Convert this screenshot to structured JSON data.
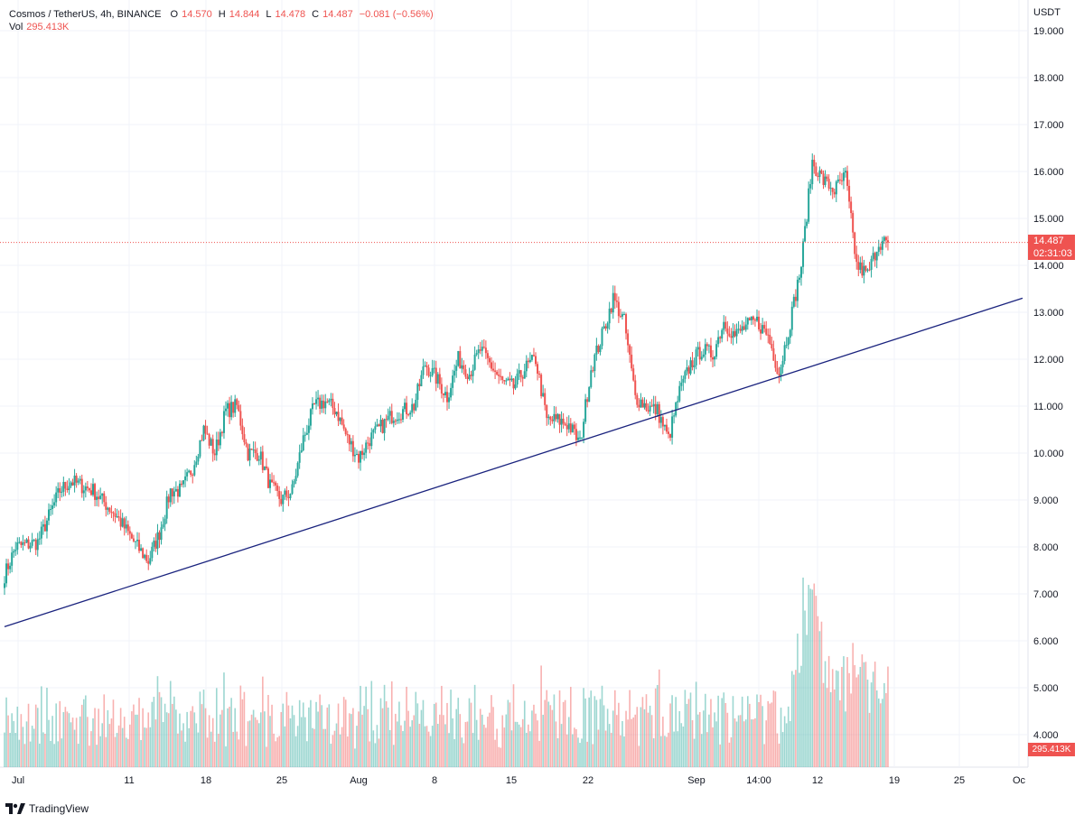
{
  "legend": {
    "symbol": "Cosmos / TetherUS, 4h, BINANCE",
    "open_label": "O",
    "open": "14.570",
    "high_label": "H",
    "high": "14.844",
    "low_label": "L",
    "low": "14.478",
    "close_label": "C",
    "close": "14.487",
    "change": "−0.081 (−0.56%)",
    "vol_label": "Vol",
    "vol": "295.413K"
  },
  "axis": {
    "currency": "USDT",
    "price_ticks": [
      "19.000",
      "18.000",
      "17.000",
      "16.000",
      "15.000",
      "14.000",
      "13.000",
      "12.000",
      "11.000",
      "10.000",
      "9.000",
      "8.000",
      "7.000",
      "6.000",
      "5.000",
      "4.000"
    ],
    "time_ticks": [
      "Jul",
      "11",
      "18",
      "25",
      "Aug",
      "8",
      "15",
      "22",
      "Sep",
      "14:00",
      "12",
      "19",
      "25",
      "Oc"
    ]
  },
  "last_price": {
    "price": "14.487",
    "countdown": "02:31:03"
  },
  "volume_tag": "295.413K",
  "brand": "TradingView",
  "colors": {
    "up": "#26a69a",
    "down": "#ef5350",
    "trendline": "#1a237e",
    "grid": "#f0f3fa"
  },
  "chart_data": {
    "type": "candlestick",
    "timeframe": "4h",
    "ylim": [
      3.4,
      19.3
    ],
    "trendline": {
      "from": {
        "x": "2022-07-01",
        "y": 6.3
      },
      "to": {
        "x": "2022-10-01",
        "y": 13.3
      }
    },
    "last_close": 14.487,
    "anchors": [
      [
        "2022-07-01",
        7.4
      ],
      [
        "2022-07-02",
        8.0
      ],
      [
        "2022-07-04",
        8.1
      ],
      [
        "2022-07-06",
        9.2
      ],
      [
        "2022-07-07",
        9.4
      ],
      [
        "2022-07-09",
        9.2
      ],
      [
        "2022-07-11",
        8.7
      ],
      [
        "2022-07-13",
        8.0
      ],
      [
        "2022-07-14",
        7.7
      ],
      [
        "2022-07-15",
        8.3
      ],
      [
        "2022-07-16",
        9.2
      ],
      [
        "2022-07-17",
        9.2
      ],
      [
        "2022-07-18",
        9.7
      ],
      [
        "2022-07-19",
        10.5
      ],
      [
        "2022-07-20",
        10.0
      ],
      [
        "2022-07-21",
        10.9
      ],
      [
        "2022-07-22",
        11.0
      ],
      [
        "2022-07-23",
        10.0
      ],
      [
        "2022-07-24",
        10.0
      ],
      [
        "2022-07-25",
        9.3
      ],
      [
        "2022-07-26",
        9.0
      ],
      [
        "2022-07-27",
        9.2
      ],
      [
        "2022-07-28",
        10.3
      ],
      [
        "2022-07-29",
        11.0
      ],
      [
        "2022-07-30",
        11.1
      ],
      [
        "2022-07-31",
        10.9
      ],
      [
        "2022-08-01",
        10.3
      ],
      [
        "2022-08-02",
        9.9
      ],
      [
        "2022-08-03",
        10.3
      ],
      [
        "2022-08-05",
        10.8
      ],
      [
        "2022-08-06",
        10.9
      ],
      [
        "2022-08-07",
        11.0
      ],
      [
        "2022-08-08",
        11.9
      ],
      [
        "2022-08-09",
        11.6
      ],
      [
        "2022-08-10",
        11.2
      ],
      [
        "2022-08-11",
        12.0
      ],
      [
        "2022-08-12",
        11.7
      ],
      [
        "2022-08-13",
        12.2
      ],
      [
        "2022-08-15",
        11.5
      ],
      [
        "2022-08-16",
        11.4
      ],
      [
        "2022-08-17",
        11.8
      ],
      [
        "2022-08-18",
        12.0
      ],
      [
        "2022-08-19",
        10.7
      ],
      [
        "2022-08-20",
        10.7
      ],
      [
        "2022-08-21",
        10.6
      ],
      [
        "2022-08-22",
        10.2
      ],
      [
        "2022-08-23",
        11.8
      ],
      [
        "2022-08-24",
        12.5
      ],
      [
        "2022-08-25",
        13.3
      ],
      [
        "2022-08-26",
        12.8
      ],
      [
        "2022-08-27",
        11.2
      ],
      [
        "2022-08-28",
        11.0
      ],
      [
        "2022-08-29",
        10.9
      ],
      [
        "2022-08-30",
        10.3
      ],
      [
        "2022-08-31",
        11.3
      ],
      [
        "2022-09-01",
        11.9
      ],
      [
        "2022-09-02",
        12.2
      ],
      [
        "2022-09-03",
        12.1
      ],
      [
        "2022-09-04",
        12.8
      ],
      [
        "2022-09-05",
        12.5
      ],
      [
        "2022-09-06",
        12.7
      ],
      [
        "2022-09-07",
        12.8
      ],
      [
        "2022-09-08",
        12.5
      ],
      [
        "2022-09-09",
        11.7
      ],
      [
        "2022-09-10",
        12.8
      ],
      [
        "2022-09-11",
        14.0
      ],
      [
        "2022-09-12",
        16.2
      ],
      [
        "2022-09-13",
        15.8
      ],
      [
        "2022-09-14",
        15.6
      ],
      [
        "2022-09-15",
        15.9
      ],
      [
        "2022-09-16",
        14.0
      ],
      [
        "2022-09-17",
        13.8
      ],
      [
        "2022-09-18",
        14.5
      ]
    ]
  }
}
